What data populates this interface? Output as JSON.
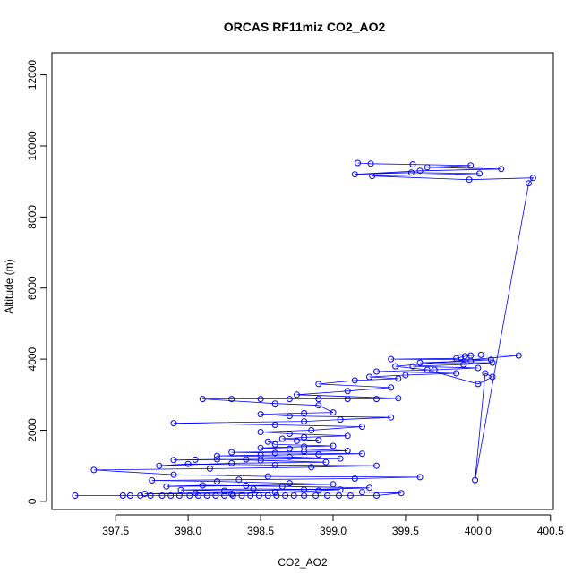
{
  "chart_data": {
    "type": "scatter",
    "title": "ORCAS RF11miz CO2_AO2",
    "xlabel": "CO2_AO2",
    "ylabel": "Altitude (m)",
    "xlim": [
      397.06,
      400.52
    ],
    "ylim": [
      -230,
      12620
    ],
    "x_ticks": [
      397.5,
      398.0,
      398.5,
      399.0,
      399.5,
      400.0,
      400.5
    ],
    "x_tick_labels": [
      "397.5",
      "398.0",
      "398.5",
      "399.0",
      "399.5",
      "400.0",
      "400.5"
    ],
    "y_ticks": [
      0,
      2000,
      4000,
      6000,
      8000,
      10000,
      12000
    ],
    "y_tick_labels": [
      "0",
      "2000",
      "4000",
      "6000",
      "8000",
      "10000",
      "12000"
    ],
    "grid": false,
    "legend": "none",
    "series_color": "#0000ff",
    "style": "open circles connected by lines",
    "series": [
      {
        "x": [
          397.22,
          397.55,
          397.6,
          397.67,
          397.74,
          397.82,
          397.88,
          397.94,
          398.01,
          398.07,
          398.13,
          398.19,
          398.25,
          398.31,
          398.37,
          398.43,
          398.49,
          398.55,
          398.61,
          398.67,
          398.73,
          398.8,
          398.88,
          398.96,
          399.04,
          399.12,
          399.3,
          399.47,
          399.2,
          398.6,
          398.05,
          397.7,
          398.3,
          398.9,
          399.05,
          398.45,
          397.95,
          398.25,
          398.8,
          399.25,
          398.65,
          398.1,
          397.85,
          398.4,
          399.0,
          398.7,
          398.2,
          397.75,
          398.35,
          399.15,
          399.6,
          398.55,
          397.9,
          397.35,
          398.15,
          398.85,
          399.3,
          398.6,
          398.0,
          397.8,
          398.3,
          398.95,
          398.5,
          398.2,
          398.05,
          397.9,
          398.4,
          399.05,
          398.7,
          398.2,
          398.5,
          398.9,
          399.2,
          398.6,
          398.3,
          398.8,
          399.1,
          398.7,
          398.5,
          398.8,
          399.0,
          398.6,
          398.55,
          398.75,
          398.9,
          398.65,
          398.8,
          399.1,
          398.7,
          398.5,
          398.85,
          399.2,
          398.6,
          397.9,
          398.8,
          399.05,
          399.4,
          398.7,
          398.5,
          398.8,
          399.0,
          398.9,
          398.6,
          398.1,
          398.3,
          398.5,
          398.7,
          398.9,
          399.1,
          399.3,
          399.45,
          398.75,
          399.1,
          399.4,
          398.9,
          399.15,
          399.45,
          399.25,
          399.5,
          399.85,
          399.3,
          399.7,
          400.0,
          399.55,
          399.9,
          400.1,
          399.6,
          399.95,
          400.09,
          399.4,
          399.85,
          399.88,
          399.91,
          399.95,
          400.02,
          400.28,
          399.43,
          399.65,
          400.0,
          400.1,
          400.05,
          399.98,
          400.35,
          400.38,
          399.94,
          399.27,
          400.01,
          399.54,
          399.15,
          399.6,
          400.16,
          399.65,
          399.95,
          399.55,
          399.26,
          399.17
        ],
        "y": [
          160,
          160,
          160,
          160,
          160,
          160,
          160,
          160,
          160,
          160,
          160,
          160,
          160,
          160,
          160,
          160,
          160,
          160,
          160,
          160,
          160,
          160,
          160,
          160,
          160,
          160,
          160,
          230,
          260,
          250,
          230,
          210,
          200,
          300,
          330,
          350,
          320,
          300,
          330,
          380,
          420,
          450,
          420,
          440,
          480,
          510,
          560,
          590,
          610,
          640,
          680,
          700,
          750,
          880,
          920,
          960,
          1000,
          1020,
          1050,
          1000,
          1070,
          1100,
          1150,
          1180,
          1170,
          1160,
          1180,
          1200,
          1250,
          1280,
          1300,
          1320,
          1340,
          1360,
          1380,
          1400,
          1420,
          1480,
          1500,
          1540,
          1560,
          1600,
          1680,
          1700,
          1720,
          1760,
          1800,
          1840,
          1900,
          1950,
          2000,
          2100,
          2150,
          2200,
          2250,
          2300,
          2360,
          2400,
          2450,
          2480,
          2500,
          2700,
          2750,
          2880,
          2880,
          2880,
          2880,
          2880,
          2880,
          2880,
          2900,
          3000,
          3100,
          3200,
          3300,
          3400,
          3450,
          3500,
          3550,
          3600,
          3650,
          3700,
          3750,
          3800,
          3850,
          3900,
          3900,
          3950,
          3980,
          4000,
          4020,
          4050,
          4080,
          4100,
          4120,
          4100,
          3800,
          3700,
          3300,
          3500,
          3600,
          600,
          8950,
          9100,
          9050,
          9150,
          9220,
          9250,
          9200,
          9300,
          9350,
          9400,
          9450,
          9480,
          9500,
          9520
        ]
      }
    ]
  }
}
